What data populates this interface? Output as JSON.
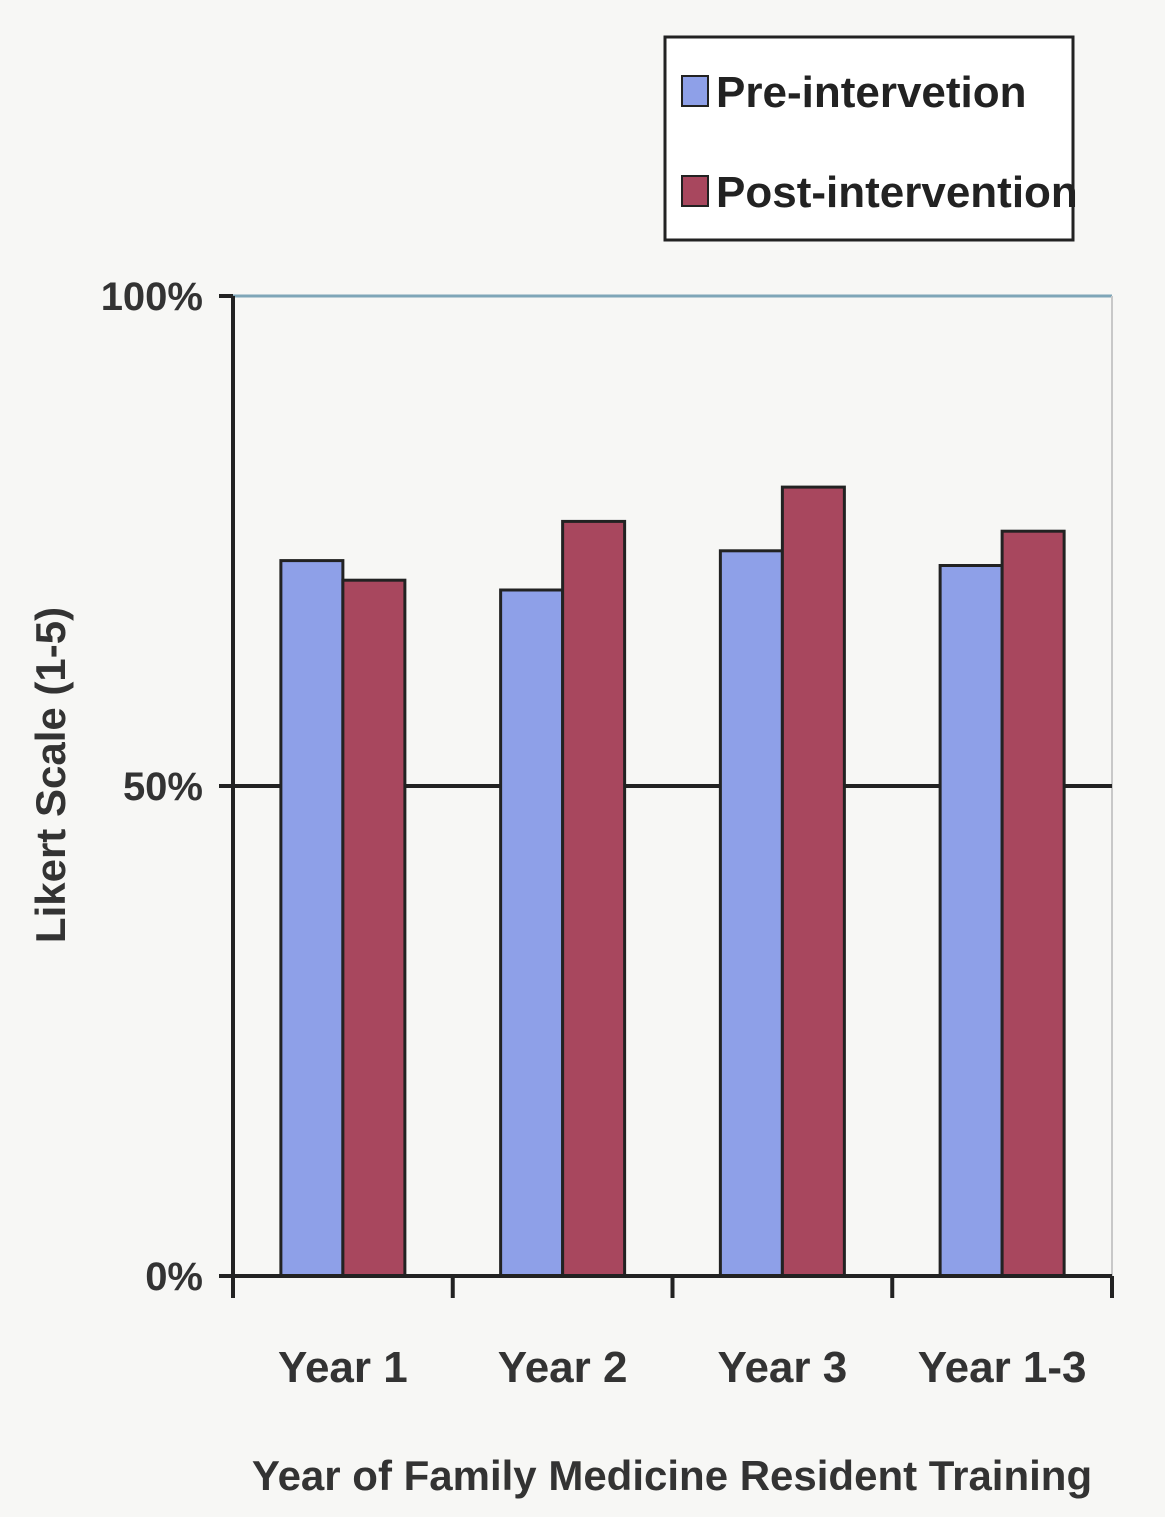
{
  "chart_data": {
    "type": "bar",
    "title": "",
    "xlabel": "Year of Family Medicine Resident Training",
    "ylabel": "Likert Scale (1-5)",
    "categories": [
      "Year 1",
      "Year 2",
      "Year 3",
      "Year 1-3"
    ],
    "series": [
      {
        "name": "Pre-intervetion",
        "color": "#8ea0e8",
        "values": [
          73,
          70,
          74,
          72.5
        ]
      },
      {
        "name": "Post-intervention",
        "color": "#a8475e",
        "values": [
          71,
          77,
          80.5,
          76
        ]
      }
    ],
    "ylim": [
      0,
      100
    ],
    "yticks": [
      {
        "value": 0,
        "label": "0%"
      },
      {
        "value": 50,
        "label": "50%"
      },
      {
        "value": 100,
        "label": "100%"
      }
    ],
    "grid": true,
    "legend_position": "top-right"
  }
}
